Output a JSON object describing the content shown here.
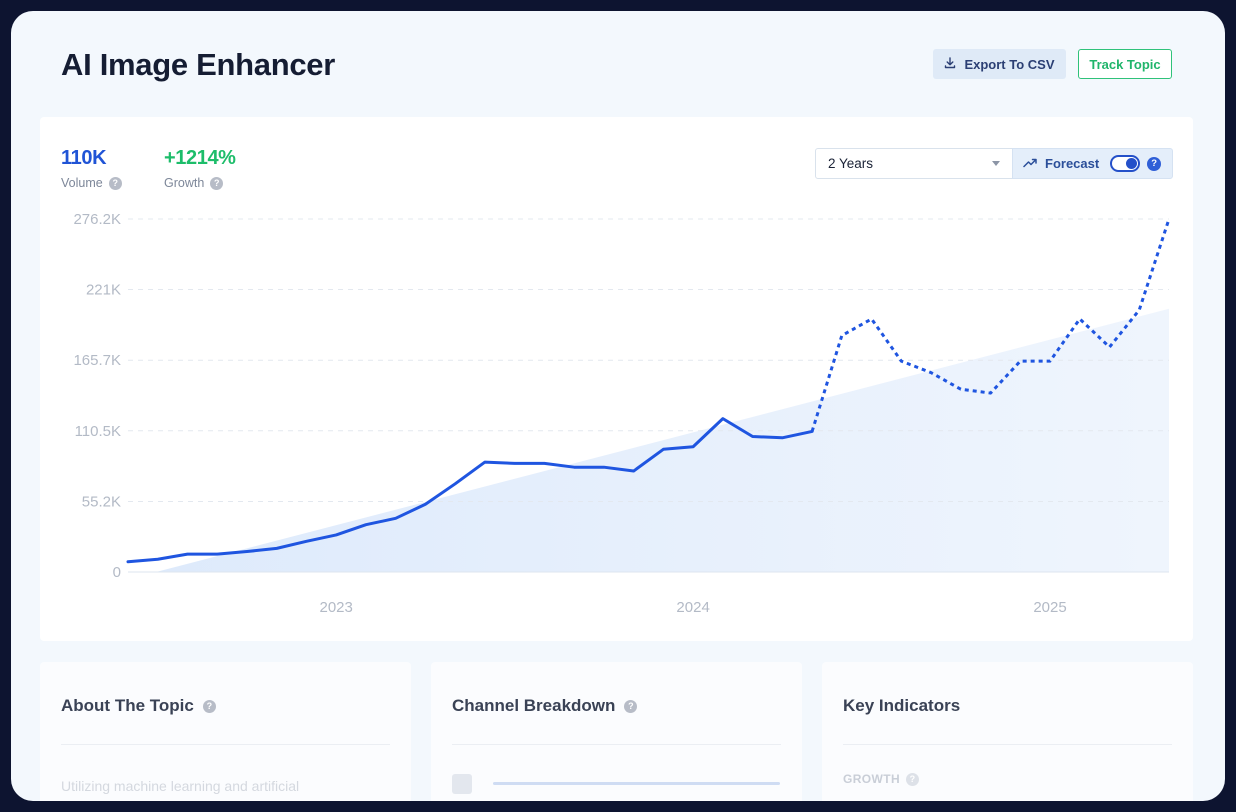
{
  "header": {
    "title": "AI Image Enhancer",
    "export_label": "Export To CSV",
    "track_label": "Track Topic"
  },
  "stats": {
    "volume_value": "110K",
    "volume_label": "Volume",
    "growth_value": "+1214%",
    "growth_label": "Growth"
  },
  "controls": {
    "range_selected": "2 Years",
    "forecast_label": "Forecast",
    "forecast_on": true
  },
  "colors": {
    "line": "#1f55e0",
    "volume": "#2054d6",
    "growth": "#1dbd6a",
    "trend_fill": "#dce9fb",
    "title": "#151d33"
  },
  "chart_data": {
    "type": "line",
    "ylim": [
      0,
      276200
    ],
    "y_ticks": [
      0,
      55200,
      110500,
      165700,
      221000,
      276200
    ],
    "y_tick_labels": [
      "0",
      "55.2K",
      "110.5K",
      "165.7K",
      "221K",
      "276.2K"
    ],
    "x_tick_labels": [
      "2023",
      "2024",
      "2025"
    ],
    "x_tick_positions": [
      7,
      19,
      31
    ],
    "x_range": [
      0,
      35
    ],
    "grid": true,
    "series": [
      {
        "kind": "actual",
        "style": "solid",
        "x": [
          0,
          1,
          2,
          3,
          4,
          5,
          6,
          7,
          8,
          9,
          10,
          11,
          12,
          13,
          14,
          15,
          16,
          17,
          18,
          19,
          20,
          21,
          22,
          23
        ],
        "y": [
          8000,
          10000,
          14000,
          14000,
          16000,
          18500,
          24000,
          29000,
          37000,
          42000,
          53000,
          69000,
          86000,
          85000,
          85000,
          82000,
          82000,
          79000,
          96000,
          98000,
          120000,
          106000,
          105000,
          110000
        ]
      },
      {
        "kind": "forecast",
        "style": "dotted",
        "x": [
          23,
          24,
          25,
          26,
          27,
          28,
          29,
          30,
          31,
          32,
          33,
          34,
          35
        ],
        "y": [
          110000,
          185000,
          198000,
          165000,
          156000,
          143000,
          140000,
          165000,
          165000,
          198000,
          176000,
          205000,
          276200
        ]
      },
      {
        "kind": "trend",
        "style": "area",
        "x": [
          0,
          35
        ],
        "y": [
          -2000,
          206000
        ]
      }
    ]
  },
  "panels": {
    "about": {
      "title": "About The Topic",
      "text": "Utilizing machine learning and artificial"
    },
    "channel": {
      "title": "Channel Breakdown"
    },
    "indicators": {
      "title": "Key Indicators",
      "label": "GROWTH"
    }
  }
}
